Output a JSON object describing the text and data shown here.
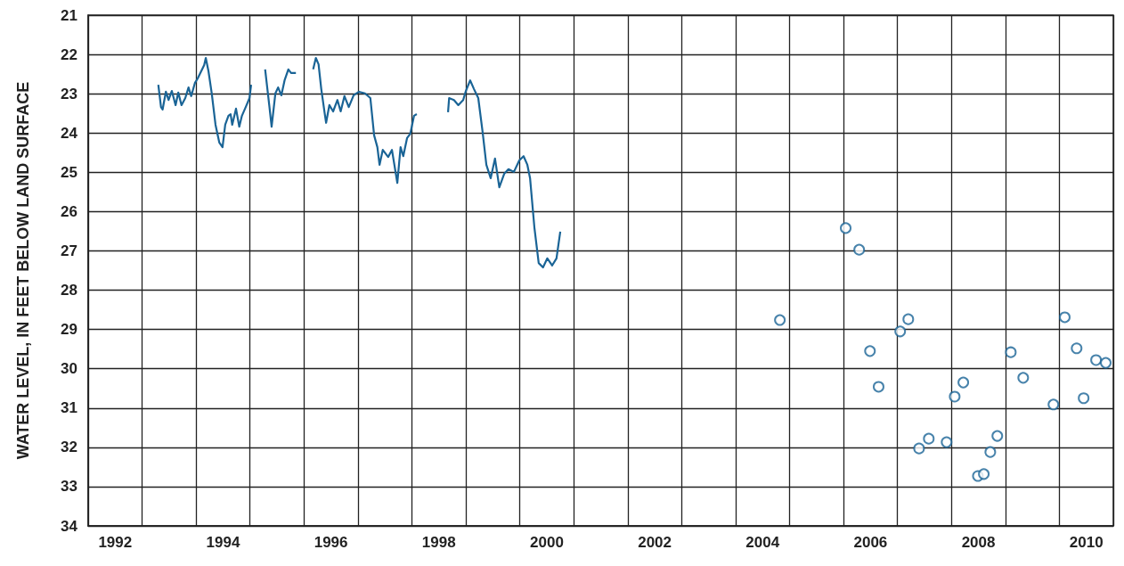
{
  "chart_data": {
    "type": "line",
    "ylabel": "WATER LEVEL, IN FEET BELOW LAND SURFACE",
    "xlim": [
      1992,
      2011
    ],
    "ylim": [
      34,
      21
    ],
    "xticks": [
      {
        "value": 1992,
        "label": null
      },
      {
        "value": 1992.5,
        "label": "1992"
      },
      {
        "value": 1993,
        "label": null
      },
      {
        "value": 1994,
        "label": null
      },
      {
        "value": 1994.5,
        "label": "1994"
      },
      {
        "value": 1995,
        "label": null
      },
      {
        "value": 1996,
        "label": null
      },
      {
        "value": 1996.5,
        "label": "1996"
      },
      {
        "value": 1997,
        "label": null
      },
      {
        "value": 1998,
        "label": null
      },
      {
        "value": 1998.5,
        "label": "1998"
      },
      {
        "value": 1999,
        "label": null
      },
      {
        "value": 2000,
        "label": null
      },
      {
        "value": 2000.5,
        "label": "2000"
      },
      {
        "value": 2001,
        "label": null
      },
      {
        "value": 2002,
        "label": null
      },
      {
        "value": 2002.5,
        "label": "2002"
      },
      {
        "value": 2003,
        "label": null
      },
      {
        "value": 2004,
        "label": null
      },
      {
        "value": 2004.5,
        "label": "2004"
      },
      {
        "value": 2005,
        "label": null
      },
      {
        "value": 2006,
        "label": null
      },
      {
        "value": 2006.5,
        "label": "2006"
      },
      {
        "value": 2007,
        "label": null
      },
      {
        "value": 2008,
        "label": null
      },
      {
        "value": 2008.5,
        "label": "2008"
      },
      {
        "value": 2009,
        "label": null
      },
      {
        "value": 2010,
        "label": null
      },
      {
        "value": 2010.5,
        "label": "2010"
      },
      {
        "value": 2011,
        "label": null
      }
    ],
    "yticks": [
      21,
      22,
      23,
      24,
      25,
      26,
      27,
      28,
      29,
      30,
      31,
      32,
      33,
      34
    ],
    "grid": true,
    "series": [
      {
        "marker": "none",
        "color": "#1a6496",
        "x": [
          1993.3,
          1993.35,
          1993.38,
          1993.44,
          1993.49,
          1993.55,
          1993.62,
          1993.67,
          1993.73,
          1993.8,
          1993.86,
          1993.91,
          1993.98,
          1994.03,
          1994.08,
          1994.15,
          1994.18,
          1994.23,
          1994.29,
          1994.36,
          1994.43,
          1994.49,
          1994.54,
          1994.6,
          1994.64,
          1994.67,
          1994.74,
          1994.8,
          1994.85,
          1994.92,
          1994.99,
          1995.02,
          1995.15,
          1995.28,
          1995.36,
          1995.4,
          1995.47,
          1995.52,
          1995.58,
          1995.64,
          1995.71,
          1995.76,
          1995.85,
          1996.0,
          1996.17,
          1996.22,
          1996.27,
          1996.32,
          1996.39,
          1996.41,
          1996.47,
          1996.54,
          1996.62,
          1996.68,
          1996.75,
          1996.83,
          1996.92,
          1997.02,
          1997.13,
          1997.23,
          1997.3,
          1997.36,
          1997.4,
          1997.46,
          1997.56,
          1997.63,
          1997.73,
          1997.79,
          1997.84,
          1997.91,
          1997.97,
          1998.04,
          1998.09,
          1998.4,
          1998.67,
          1998.69,
          1998.78,
          1998.86,
          1998.95,
          1999.0,
          1999.08,
          1999.15,
          1999.23,
          1999.31,
          1999.38,
          1999.46,
          1999.54,
          1999.62,
          1999.71,
          1999.79,
          1999.89,
          1999.99,
          2000.07,
          2000.14,
          2000.19,
          2000.27,
          2000.35,
          2000.43,
          2000.51,
          2000.6,
          2000.68,
          2000.75
        ],
        "values": [
          22.77,
          23.34,
          23.4,
          22.95,
          23.16,
          22.93,
          23.29,
          22.97,
          23.29,
          23.11,
          22.84,
          23.06,
          22.72,
          22.61,
          22.47,
          22.27,
          22.09,
          22.43,
          22.99,
          23.79,
          24.24,
          24.36,
          23.79,
          23.56,
          23.52,
          23.79,
          23.38,
          23.84,
          23.56,
          23.34,
          23.11,
          22.77,
          null,
          22.38,
          23.34,
          23.84,
          22.99,
          22.84,
          23.04,
          22.66,
          22.38,
          22.47,
          22.47,
          null,
          22.38,
          22.09,
          22.25,
          22.88,
          23.56,
          23.74,
          23.29,
          23.45,
          23.16,
          23.45,
          23.06,
          23.34,
          23.04,
          22.95,
          22.99,
          23.11,
          24.06,
          24.36,
          24.81,
          24.43,
          24.61,
          24.43,
          25.27,
          24.36,
          24.59,
          24.13,
          24.02,
          23.56,
          23.52,
          null,
          23.47,
          23.11,
          23.16,
          23.29,
          23.16,
          22.93,
          22.66,
          22.88,
          23.11,
          23.97,
          24.81,
          25.15,
          24.65,
          25.38,
          25.04,
          24.92,
          24.99,
          24.7,
          24.59,
          24.81,
          25.15,
          26.4,
          27.31,
          27.42,
          27.19,
          27.37,
          27.19,
          26.51
        ]
      },
      {
        "type": "scatter",
        "marker": "circle",
        "color": "#1a6496",
        "x": [
          2004.82,
          2006.04,
          2006.29,
          2006.49,
          2006.65,
          2007.05,
          2007.2,
          2007.4,
          2007.58,
          2007.91,
          2008.06,
          2008.22,
          2008.49,
          2008.6,
          2008.72,
          2008.85,
          2009.1,
          2009.33,
          2009.89,
          2010.1,
          2010.32,
          2010.45,
          2010.68,
          2010.86
        ],
        "values": [
          28.76,
          26.42,
          26.97,
          29.55,
          30.46,
          29.05,
          28.74,
          32.03,
          31.78,
          31.87,
          30.71,
          30.35,
          32.73,
          32.68,
          32.12,
          31.71,
          29.58,
          30.23,
          30.91,
          28.69,
          29.48,
          30.75,
          29.78,
          29.85
        ]
      }
    ]
  }
}
